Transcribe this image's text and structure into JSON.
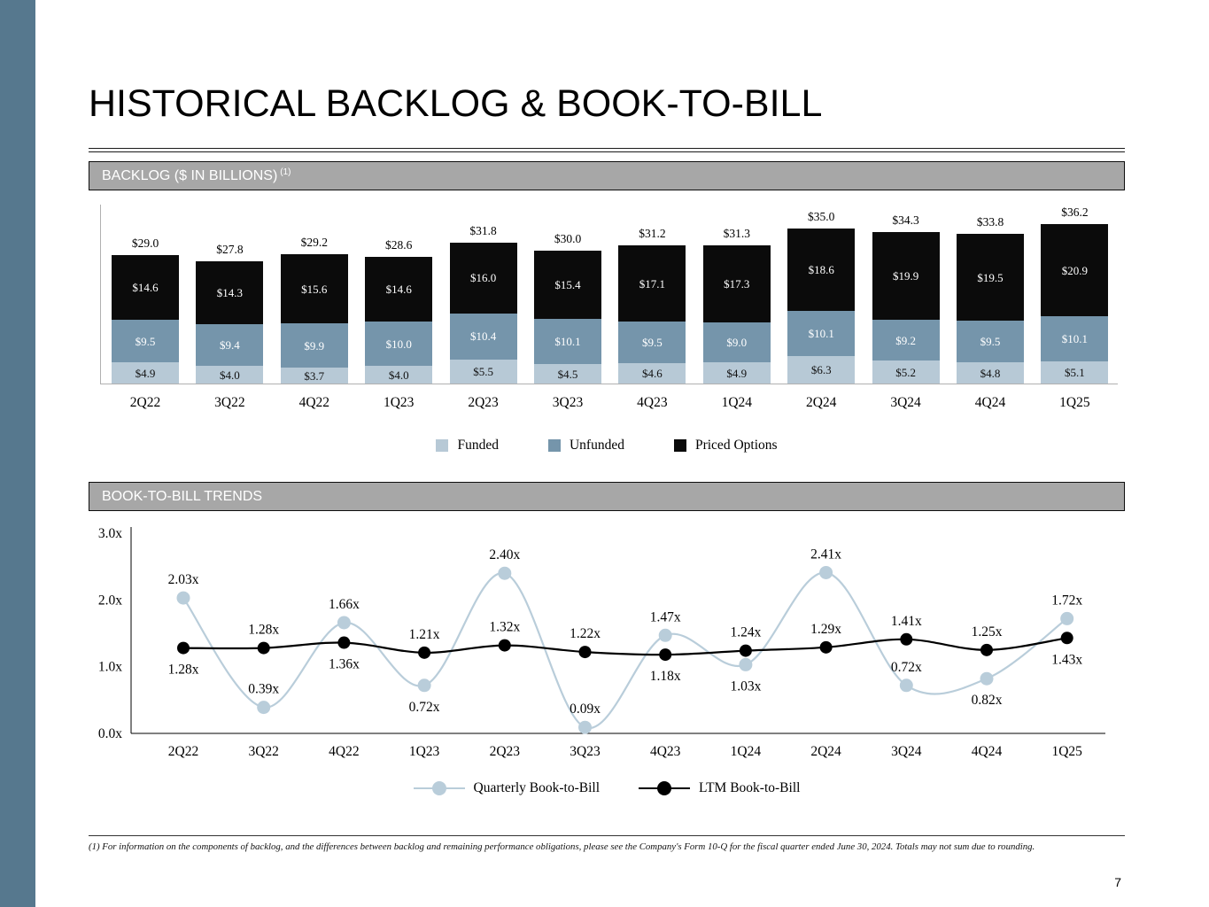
{
  "title": "HISTORICAL BACKLOG & BOOK-TO-BILL",
  "page_number": "7",
  "footnote": "(1) For information on the components of backlog, and the differences between backlog and remaining performance obligations, please see the Company's Form 10-Q for the fiscal quarter ended June 30, 2024. Totals may not sum due to rounding.",
  "sections": {
    "backlog": {
      "header": "BACKLOG ($ IN BILLIONS)",
      "header_sup": "(1)"
    },
    "book_to_bill": {
      "header": "BOOK-TO-BILL TRENDS"
    }
  },
  "colors": {
    "accent_bar": "#56788e",
    "header_bg": "#a7a7a7",
    "funded": "#b7c9d6",
    "unfunded": "#7595ab",
    "priced_options": "#0b0b0b",
    "quarterly_line": "#b9cdda",
    "ltm_line": "#000000"
  },
  "chart_data": [
    {
      "type": "bar",
      "stacked": true,
      "title": "BACKLOG ($ IN BILLIONS)",
      "categories": [
        "2Q22",
        "3Q22",
        "4Q22",
        "1Q23",
        "2Q23",
        "3Q23",
        "4Q23",
        "1Q24",
        "2Q24",
        "3Q24",
        "4Q24",
        "1Q25"
      ],
      "series": [
        {
          "name": "Funded",
          "color": "#b7c9d6",
          "label_color": "#111111",
          "values": [
            4.9,
            4.0,
            3.7,
            4.0,
            5.5,
            4.5,
            4.6,
            4.9,
            6.3,
            5.2,
            4.8,
            5.1
          ],
          "labels": [
            "$4.9",
            "$4.0",
            "$3.7",
            "$4.0",
            "$5.5",
            "$4.5",
            "$4.6",
            "$4.9",
            "$6.3",
            "$5.2",
            "$4.8",
            "$5.1"
          ]
        },
        {
          "name": "Unfunded",
          "color": "#7595ab",
          "label_color": "#ffffff",
          "values": [
            9.5,
            9.4,
            9.9,
            10.0,
            10.4,
            10.1,
            9.5,
            9.0,
            10.1,
            9.2,
            9.5,
            10.1
          ],
          "labels": [
            "$9.5",
            "$9.4",
            "$9.9",
            "$10.0",
            "$10.4",
            "$10.1",
            "$9.5",
            "$9.0",
            "$10.1",
            "$9.2",
            "$9.5",
            "$10.1"
          ]
        },
        {
          "name": "Priced Options",
          "color": "#0b0b0b",
          "label_color": "#ffffff",
          "values": [
            14.6,
            14.3,
            15.6,
            14.6,
            16.0,
            15.4,
            17.1,
            17.3,
            18.6,
            19.9,
            19.5,
            20.9
          ],
          "labels": [
            "$14.6",
            "$14.3",
            "$15.6",
            "$14.6",
            "$16.0",
            "$15.4",
            "$17.1",
            "$17.3",
            "$18.6",
            "$19.9",
            "$19.5",
            "$20.9"
          ]
        }
      ],
      "totals": [
        "$29.0",
        "$27.8",
        "$29.2",
        "$28.6",
        "$31.8",
        "$30.0",
        "$31.2",
        "$31.3",
        "$35.0",
        "$34.3",
        "$33.8",
        "$36.2"
      ],
      "ylim": [
        0,
        38
      ],
      "legend_position": "bottom"
    },
    {
      "type": "line",
      "title": "BOOK-TO-BILL TRENDS",
      "categories": [
        "2Q22",
        "3Q22",
        "4Q22",
        "1Q23",
        "2Q23",
        "3Q23",
        "4Q23",
        "1Q24",
        "2Q24",
        "3Q24",
        "4Q24",
        "1Q25"
      ],
      "ylim": [
        0,
        3
      ],
      "y_ticks": [
        {
          "value": 0,
          "label": "0.0x"
        },
        {
          "value": 1,
          "label": "1.0x"
        },
        {
          "value": 2,
          "label": "2.0x"
        },
        {
          "value": 3,
          "label": "3.0x"
        }
      ],
      "series": [
        {
          "name": "Quarterly Book-to-Bill",
          "color": "#b9cdda",
          "marker_radius": 7.5,
          "values": [
            2.03,
            0.39,
            1.66,
            0.72,
            2.4,
            0.09,
            1.47,
            1.03,
            2.41,
            0.72,
            0.82,
            1.72
          ],
          "labels": [
            "2.03x",
            "0.39x",
            "1.66x",
            "0.72x",
            "2.40x",
            "0.09x",
            "1.47x",
            "1.03x",
            "2.41x",
            "0.72x",
            "0.82x",
            "1.72x"
          ],
          "label_pos": [
            "above",
            "above",
            "above",
            "below",
            "above",
            "above",
            "above",
            "below",
            "above",
            "above",
            "below",
            "above"
          ]
        },
        {
          "name": "LTM Book-to-Bill",
          "color": "#000000",
          "marker_radius": 7,
          "values": [
            1.28,
            1.28,
            1.36,
            1.21,
            1.32,
            1.22,
            1.18,
            1.24,
            1.29,
            1.41,
            1.25,
            1.43
          ],
          "labels": [
            "1.28x",
            "1.28x",
            "1.36x",
            "1.21x",
            "1.32x",
            "1.22x",
            "1.18x",
            "1.24x",
            "1.29x",
            "1.41x",
            "1.25x",
            "1.43x"
          ],
          "label_pos": [
            "below",
            "above",
            "below",
            "above",
            "above",
            "above",
            "below",
            "above",
            "above",
            "above",
            "above",
            "below"
          ]
        }
      ],
      "legend_position": "bottom"
    }
  ]
}
